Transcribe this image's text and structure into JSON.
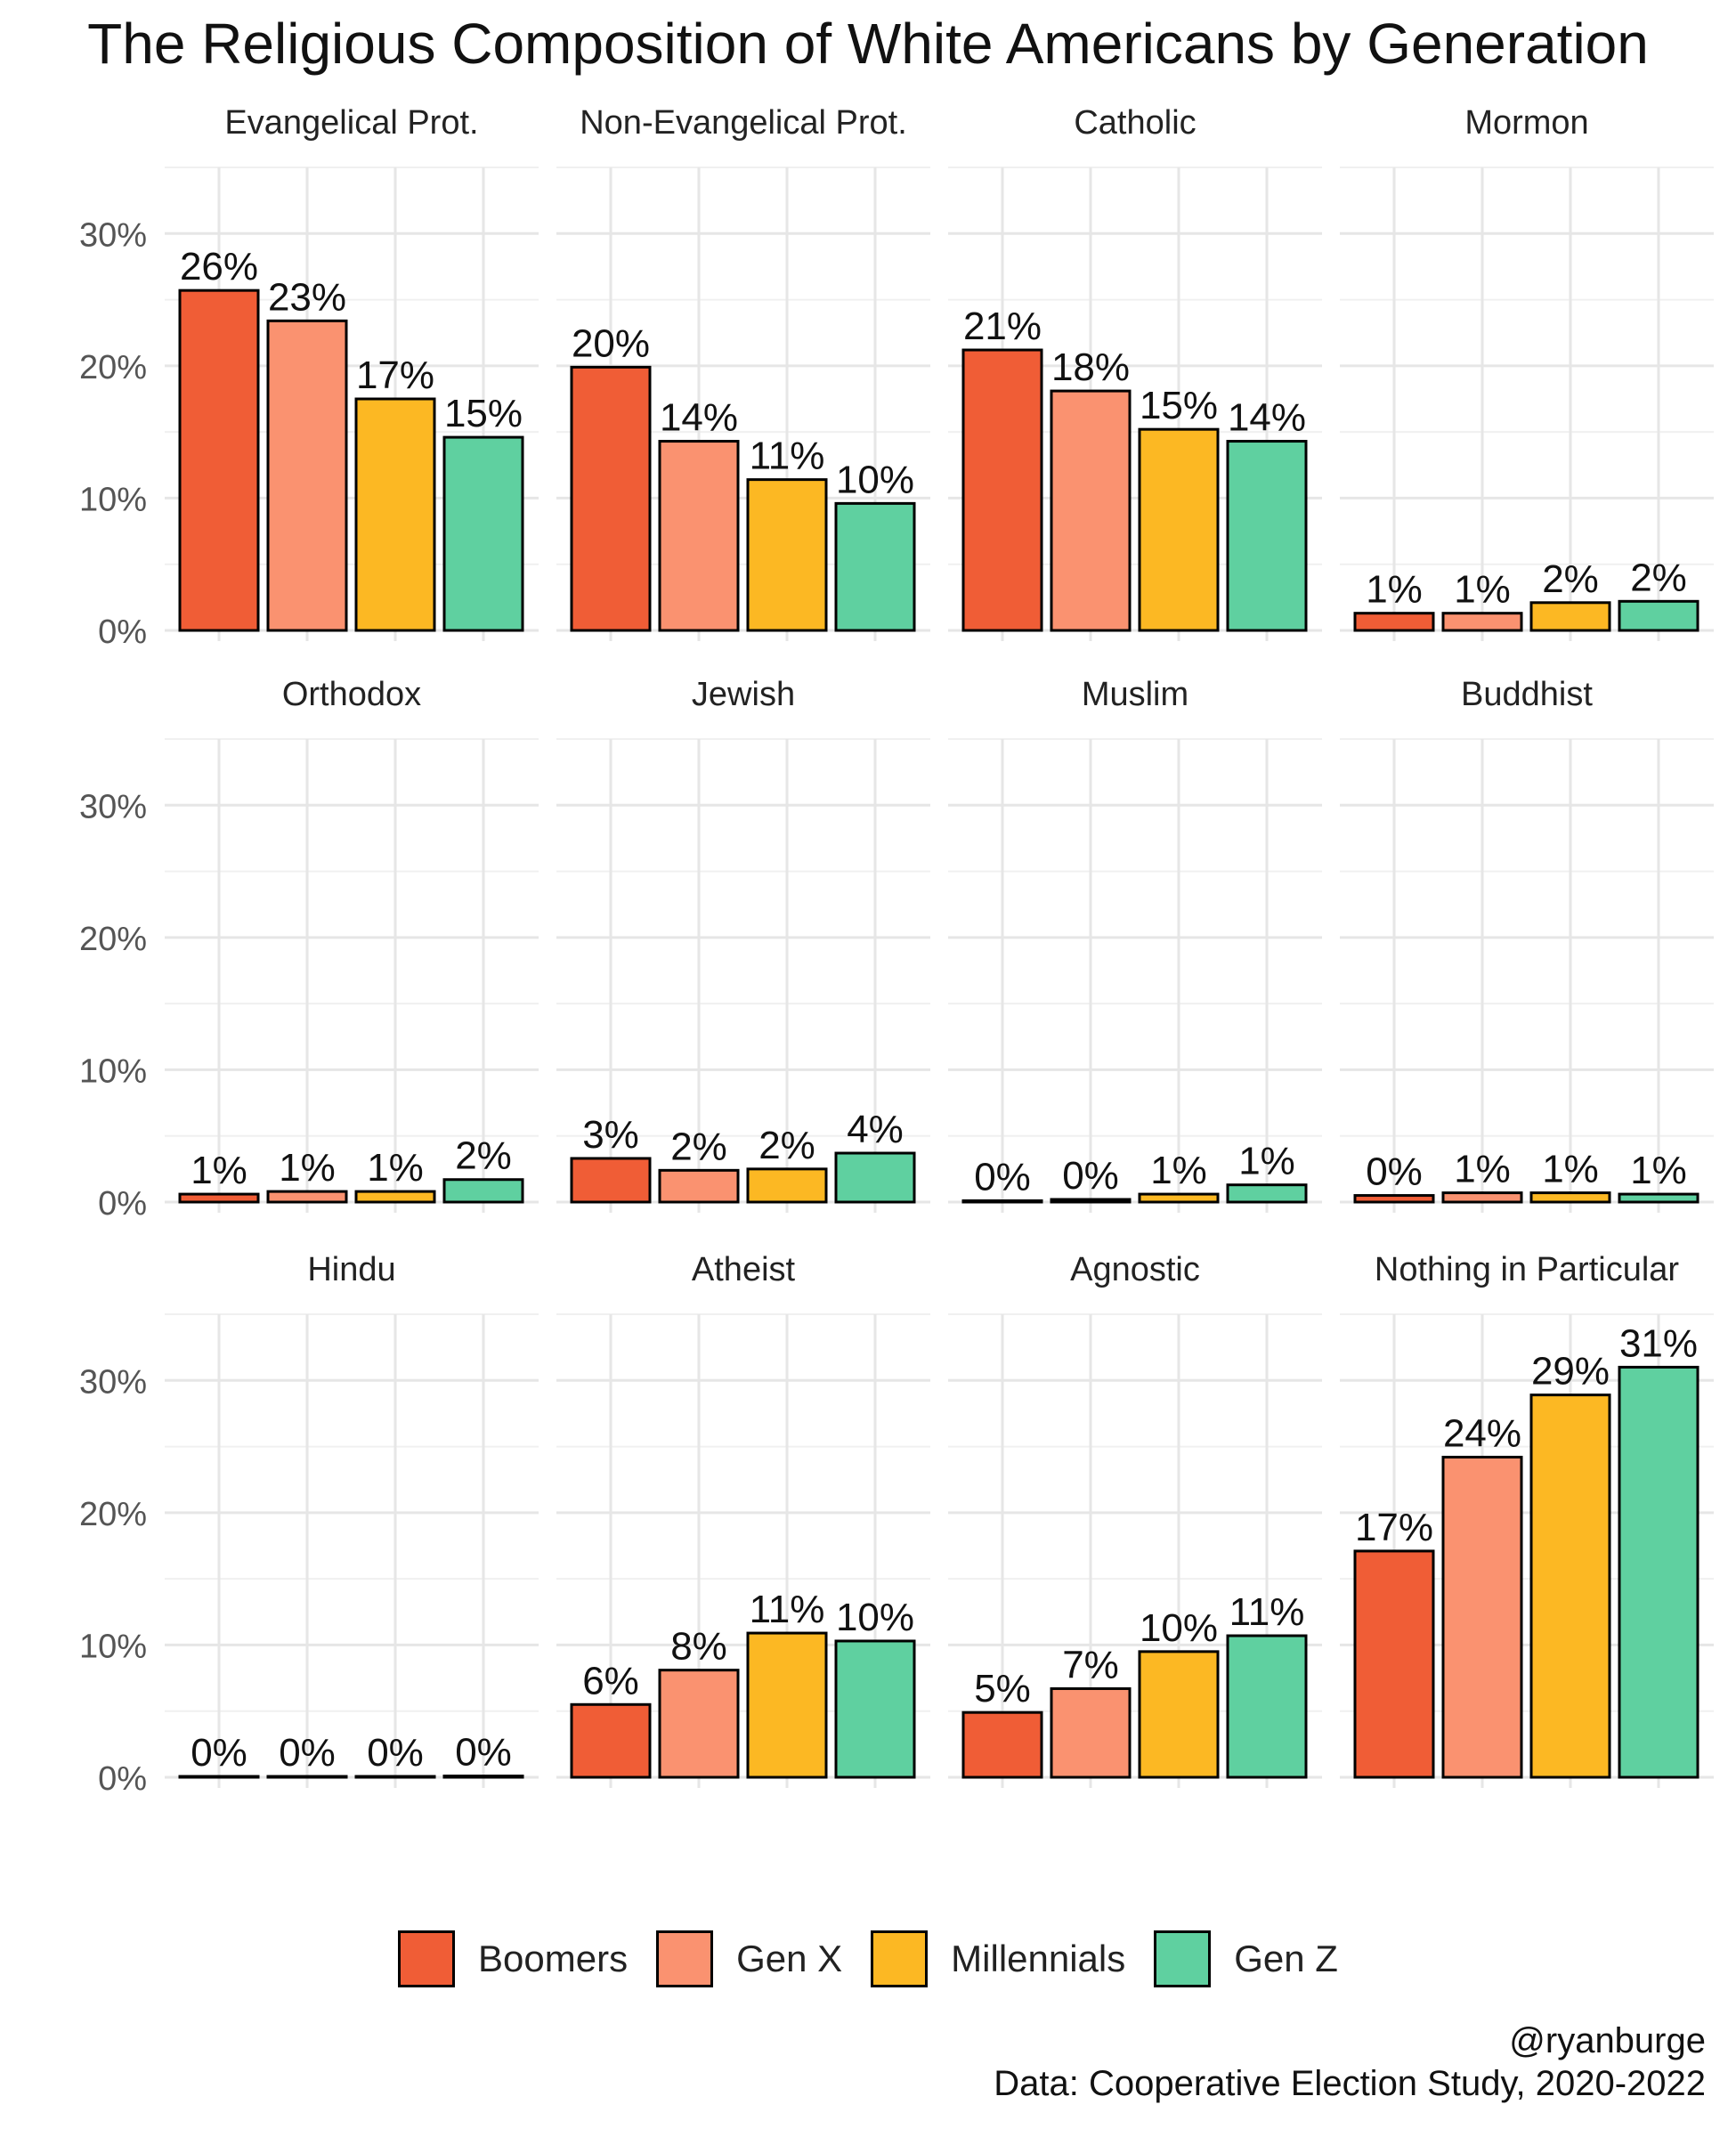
{
  "chart_data": {
    "type": "bar",
    "title": "The Religious Composition of White Americans by Generation",
    "categories": [
      "Boomers",
      "Gen X",
      "Millennials",
      "Gen Z"
    ],
    "colors": {
      "Boomers": "#F05D36",
      "Gen X": "#FA9270",
      "Millennials": "#FCB823",
      "Gen Z": "#5FD0A0"
    },
    "ylim": [
      0,
      35
    ],
    "yticks": [
      "0%",
      "10%",
      "20%",
      "30%"
    ],
    "grid": true,
    "legend_position": "bottom",
    "facets": [
      {
        "name": "Evangelical Prot.",
        "values": [
          25.7,
          23.4,
          17.5,
          14.6
        ],
        "labels": [
          "26%",
          "23%",
          "17%",
          "15%"
        ]
      },
      {
        "name": "Non-Evangelical Prot.",
        "values": [
          19.9,
          14.3,
          11.4,
          9.6
        ],
        "labels": [
          "20%",
          "14%",
          "11%",
          "10%"
        ]
      },
      {
        "name": "Catholic",
        "values": [
          21.2,
          18.1,
          15.2,
          14.3
        ],
        "labels": [
          "21%",
          "18%",
          "15%",
          "14%"
        ]
      },
      {
        "name": "Mormon",
        "values": [
          1.3,
          1.3,
          2.1,
          2.2
        ],
        "labels": [
          "1%",
          "1%",
          "2%",
          "2%"
        ]
      },
      {
        "name": "Orthodox",
        "values": [
          0.6,
          0.8,
          0.8,
          1.7
        ],
        "labels": [
          "1%",
          "1%",
          "1%",
          "2%"
        ]
      },
      {
        "name": "Jewish",
        "values": [
          3.3,
          2.4,
          2.5,
          3.7
        ],
        "labels": [
          "3%",
          "2%",
          "2%",
          "4%"
        ]
      },
      {
        "name": "Muslim",
        "values": [
          0.1,
          0.2,
          0.6,
          1.3
        ],
        "labels": [
          "0%",
          "0%",
          "1%",
          "1%"
        ]
      },
      {
        "name": "Buddhist",
        "values": [
          0.5,
          0.7,
          0.7,
          0.6
        ],
        "labels": [
          "0%",
          "1%",
          "1%",
          "1%"
        ]
      },
      {
        "name": "Hindu",
        "values": [
          0.0,
          0.0,
          0.0,
          0.1
        ],
        "labels": [
          "0%",
          "0%",
          "0%",
          "0%"
        ]
      },
      {
        "name": "Atheist",
        "values": [
          5.5,
          8.1,
          10.9,
          10.3
        ],
        "labels": [
          "6%",
          "8%",
          "11%",
          "10%"
        ]
      },
      {
        "name": "Agnostic",
        "values": [
          4.9,
          6.7,
          9.5,
          10.7
        ],
        "labels": [
          "5%",
          "7%",
          "10%",
          "11%"
        ]
      },
      {
        "name": "Nothing in Particular",
        "values": [
          17.1,
          24.2,
          28.9,
          31.0
        ],
        "labels": [
          "17%",
          "24%",
          "29%",
          "31%"
        ]
      }
    ]
  },
  "caption": {
    "handle": "@ryanburge",
    "source": "Data: Cooperative Election Study, 2020-2022"
  }
}
